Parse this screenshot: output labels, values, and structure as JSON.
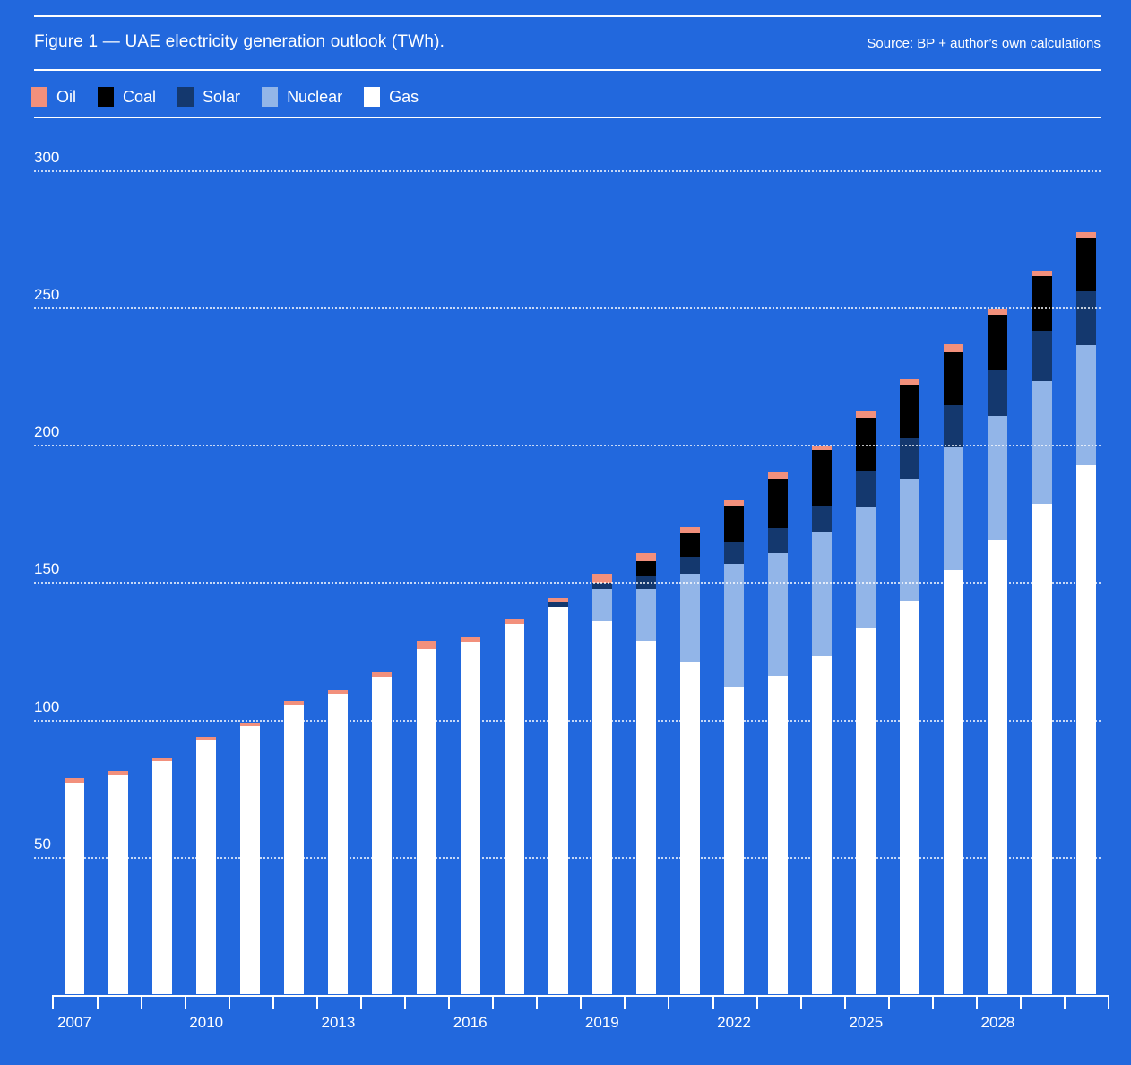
{
  "header": {
    "title": "Figure 1 — UAE electricity generation outlook (TWh).",
    "source": "Source: BP + author’s own calculations"
  },
  "colors": {
    "background": "#2268dd",
    "text": "#ffffff",
    "oil": "#f2907c",
    "coal": "#000000",
    "solar": "#14386e",
    "nuclear": "#92b5e8",
    "gas": "#ffffff"
  },
  "chart_data": {
    "type": "bar",
    "stacked": true,
    "title": "Figure 1 — UAE electricity generation outlook (TWh).",
    "source": "Source: BP + author’s own calculations",
    "units": "TWh",
    "categories": [
      2007,
      2008,
      2009,
      2010,
      2011,
      2012,
      2013,
      2014,
      2015,
      2016,
      2017,
      2018,
      2019,
      2020,
      2021,
      2022,
      2023,
      2024,
      2025,
      2026,
      2027,
      2028,
      2029,
      2030
    ],
    "series": [
      {
        "name": "Gas",
        "color": "#ffffff",
        "values": [
          77.0,
          80.0,
          85.0,
          92.5,
          97.5,
          105.3,
          109.2,
          115.5,
          125.7,
          128.3,
          134.9,
          141.1,
          135.9,
          128.6,
          121.1,
          111.8,
          115.8,
          123.0,
          133.6,
          143.4,
          154.3,
          165.5,
          178.6,
          192.4
        ]
      },
      {
        "name": "Nuclear",
        "color": "#92b5e8",
        "values": [
          0,
          0,
          0,
          0,
          0,
          0,
          0,
          0,
          0,
          0,
          0,
          0,
          11.5,
          18.8,
          31.9,
          44.7,
          44.7,
          45.0,
          43.8,
          44.4,
          44.7,
          45.0,
          44.7,
          44.0
        ]
      },
      {
        "name": "Solar",
        "color": "#14386e",
        "values": [
          0,
          0,
          0,
          0,
          0,
          0,
          0,
          0,
          0,
          0,
          0,
          1.6,
          2.3,
          4.9,
          6.3,
          7.9,
          9.2,
          9.9,
          13.2,
          14.5,
          15.5,
          16.8,
          18.1,
          19.4
        ]
      },
      {
        "name": "Coal",
        "color": "#000000",
        "values": [
          0,
          0,
          0,
          0,
          0,
          0,
          0,
          0,
          0,
          0,
          0,
          0,
          0,
          5.3,
          8.6,
          13.5,
          18.1,
          20.1,
          19.1,
          19.7,
          19.1,
          20.1,
          20.1,
          19.7
        ]
      },
      {
        "name": "Oil",
        "color": "#f2907c",
        "values": [
          1.7,
          1.3,
          1.3,
          1.3,
          1.3,
          1.3,
          1.3,
          1.6,
          2.9,
          1.7,
          1.6,
          1.4,
          3.3,
          3.0,
          2.0,
          2.0,
          2.0,
          1.6,
          2.6,
          1.8,
          2.9,
          2.0,
          2.0,
          1.8
        ]
      }
    ],
    "legend_order": [
      "Oil",
      "Coal",
      "Solar",
      "Nuclear",
      "Gas"
    ],
    "ylim": [
      0,
      300
    ],
    "yticks": [
      "50",
      "100",
      "150",
      "200",
      "250",
      "300"
    ],
    "xtick_labels": [
      "2007",
      "2010",
      "2013",
      "2016",
      "2019",
      "2022",
      "2025",
      "2028"
    ],
    "xtick_step": 3,
    "grid": "horizontal-dotted",
    "legend_position": "top-left"
  }
}
